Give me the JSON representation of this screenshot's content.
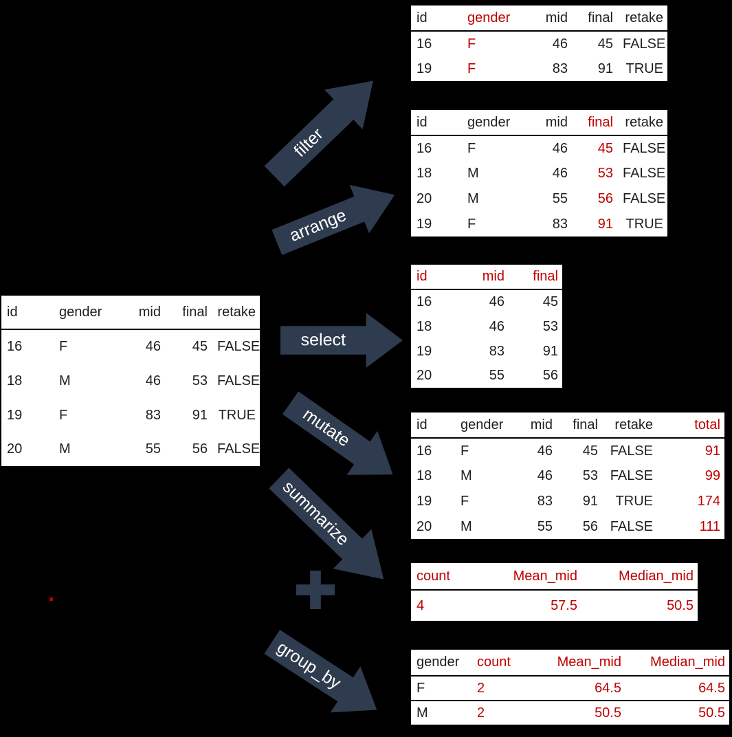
{
  "diagram": {
    "background": "#000000",
    "table_background": "#ffffff",
    "text_color": "#1f1f1f",
    "highlight_color": "#c00000",
    "arrow_color": "#2f3b4e",
    "arrow_label_color": "#ffffff"
  },
  "arrows": {
    "filter": {
      "label": "filter"
    },
    "arrange": {
      "label": "arrange"
    },
    "select": {
      "label": "select"
    },
    "mutate": {
      "label": "mutate"
    },
    "summarize": {
      "label": "summarize"
    },
    "group_by": {
      "label": "group_by"
    },
    "plus": {
      "symbol": "+"
    }
  },
  "tables": {
    "source": {
      "columns": [
        {
          "label": "id",
          "align": "left",
          "header_red": false,
          "cells_red": false
        },
        {
          "label": "gender",
          "align": "left",
          "header_red": false,
          "cells_red": false
        },
        {
          "label": "mid",
          "align": "right",
          "header_red": false,
          "cells_red": false
        },
        {
          "label": "final",
          "align": "right",
          "header_red": false,
          "cells_red": false
        },
        {
          "label": "retake",
          "align": "right",
          "header_red": false,
          "cells_red": false
        }
      ],
      "rows": [
        [
          "16",
          "F",
          "46",
          "45",
          "FALSE"
        ],
        [
          "18",
          "M",
          "46",
          "53",
          "FALSE"
        ],
        [
          "19",
          "F",
          "83",
          "91",
          "TRUE"
        ],
        [
          "20",
          "M",
          "55",
          "56",
          "FALSE"
        ]
      ]
    },
    "filter": {
      "columns": [
        {
          "label": "id",
          "align": "left",
          "header_red": false,
          "cells_red": false
        },
        {
          "label": "gender",
          "align": "left",
          "header_red": true,
          "cells_red": true
        },
        {
          "label": "mid",
          "align": "right",
          "header_red": false,
          "cells_red": false
        },
        {
          "label": "final",
          "align": "right",
          "header_red": false,
          "cells_red": false
        },
        {
          "label": "retake",
          "align": "right",
          "header_red": false,
          "cells_red": false
        }
      ],
      "rows": [
        [
          "16",
          "F",
          "46",
          "45",
          "FALSE"
        ],
        [
          "19",
          "F",
          "83",
          "91",
          "TRUE"
        ]
      ]
    },
    "arrange": {
      "columns": [
        {
          "label": "id",
          "align": "left",
          "header_red": false,
          "cells_red": false
        },
        {
          "label": "gender",
          "align": "left",
          "header_red": false,
          "cells_red": false
        },
        {
          "label": "mid",
          "align": "right",
          "header_red": false,
          "cells_red": false
        },
        {
          "label": "final",
          "align": "right",
          "header_red": true,
          "cells_red": true
        },
        {
          "label": "retake",
          "align": "right",
          "header_red": false,
          "cells_red": false
        }
      ],
      "rows": [
        [
          "16",
          "F",
          "46",
          "45",
          "FALSE"
        ],
        [
          "18",
          "M",
          "46",
          "53",
          "FALSE"
        ],
        [
          "20",
          "M",
          "55",
          "56",
          "FALSE"
        ],
        [
          "19",
          "F",
          "83",
          "91",
          "TRUE"
        ]
      ]
    },
    "select": {
      "columns": [
        {
          "label": "id",
          "align": "left",
          "header_red": true,
          "cells_red": false
        },
        {
          "label": "mid",
          "align": "right",
          "header_red": true,
          "cells_red": false
        },
        {
          "label": "final",
          "align": "right",
          "header_red": true,
          "cells_red": false
        }
      ],
      "rows": [
        [
          "16",
          "46",
          "45"
        ],
        [
          "18",
          "46",
          "53"
        ],
        [
          "19",
          "83",
          "91"
        ],
        [
          "20",
          "55",
          "56"
        ]
      ]
    },
    "mutate": {
      "columns": [
        {
          "label": "id",
          "align": "left",
          "header_red": false,
          "cells_red": false
        },
        {
          "label": "gender",
          "align": "left",
          "header_red": false,
          "cells_red": false
        },
        {
          "label": "mid",
          "align": "right",
          "header_red": false,
          "cells_red": false
        },
        {
          "label": "final",
          "align": "right",
          "header_red": false,
          "cells_red": false
        },
        {
          "label": "retake",
          "align": "right",
          "header_red": false,
          "cells_red": false
        },
        {
          "label": "total",
          "align": "right",
          "header_red": true,
          "cells_red": true
        }
      ],
      "rows": [
        [
          "16",
          "F",
          "46",
          "45",
          "FALSE",
          "91"
        ],
        [
          "18",
          "M",
          "46",
          "53",
          "FALSE",
          "99"
        ],
        [
          "19",
          "F",
          "83",
          "91",
          "TRUE",
          "174"
        ],
        [
          "20",
          "M",
          "55",
          "56",
          "FALSE",
          "111"
        ]
      ]
    },
    "summarize": {
      "columns": [
        {
          "label": "count",
          "align": "left",
          "header_red": true,
          "cells_red": true
        },
        {
          "label": "Mean_mid",
          "align": "right",
          "header_red": true,
          "cells_red": true
        },
        {
          "label": "Median_mid",
          "align": "right",
          "header_red": true,
          "cells_red": true
        }
      ],
      "rows": [
        [
          "4",
          "57.5",
          "50.5"
        ]
      ]
    },
    "group_by": {
      "columns": [
        {
          "label": "gender",
          "align": "left",
          "header_red": false,
          "cells_red": false
        },
        {
          "label": "count",
          "align": "left",
          "header_red": true,
          "cells_red": true
        },
        {
          "label": "Mean_mid",
          "align": "right",
          "header_red": true,
          "cells_red": true
        },
        {
          "label": "Median_mid",
          "align": "right",
          "header_red": true,
          "cells_red": true
        }
      ],
      "rows": [
        [
          "F",
          "2",
          "64.5",
          "64.5"
        ],
        [
          "M",
          "2",
          "50.5",
          "50.5"
        ]
      ]
    }
  }
}
